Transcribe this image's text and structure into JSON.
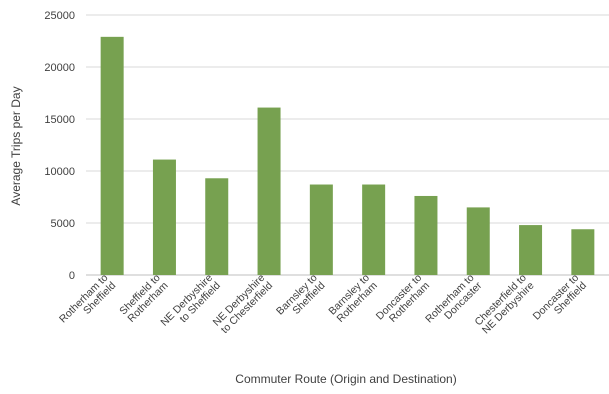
{
  "chart_data": {
    "type": "bar",
    "title": "",
    "xlabel": "Commuter Route (Origin and Destination)",
    "ylabel": "Average Trips per Day",
    "ylim": [
      0,
      25000
    ],
    "yticks": [
      0,
      5000,
      10000,
      15000,
      20000,
      25000
    ],
    "grid": true,
    "legend": "none",
    "bar_color": "#77a150",
    "categories": [
      [
        "Rotherham to",
        "Sheffield"
      ],
      [
        "Sheffield to",
        "Rotherham"
      ],
      [
        "NE Derbyshire",
        "to Sheffield"
      ],
      [
        "NE Derbyshire",
        "to Chesterfield"
      ],
      [
        "Barnsley to",
        "Sheffield"
      ],
      [
        "Barnsley to",
        "Rotherham"
      ],
      [
        "Doncaster to",
        "Rotherham"
      ],
      [
        "Rotherham to",
        "Doncaster"
      ],
      [
        "Chesterfield to",
        "NE Derbyshire"
      ],
      [
        "Doncaster to",
        "Sheffield"
      ]
    ],
    "values": [
      22900,
      11100,
      9300,
      16100,
      8700,
      8700,
      7600,
      6500,
      4800,
      4400
    ]
  }
}
